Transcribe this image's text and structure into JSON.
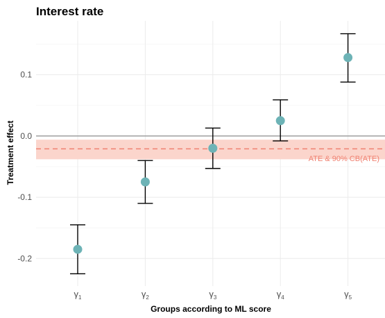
{
  "chart_data": {
    "type": "scatter",
    "title": "Interest rate",
    "xlabel": "Groups according to ML score",
    "ylabel": "Treatment effect",
    "categories": [
      {
        "sym": "γ",
        "sub": "1"
      },
      {
        "sym": "γ",
        "sub": "2"
      },
      {
        "sym": "γ",
        "sub": "3"
      },
      {
        "sym": "γ",
        "sub": "4"
      },
      {
        "sym": "γ",
        "sub": "5"
      }
    ],
    "estimates": [
      -0.185,
      -0.075,
      -0.02,
      0.025,
      0.128
    ],
    "ci_lower": [
      -0.225,
      -0.11,
      -0.053,
      -0.008,
      0.088
    ],
    "ci_upper": [
      -0.145,
      -0.04,
      0.013,
      0.059,
      0.167
    ],
    "ate": {
      "value": -0.021,
      "lower": -0.038,
      "upper": -0.006,
      "label": "ATE & 90% CB(ATE)",
      "line_color": "#f08070",
      "band_color": "#fbd5cc"
    },
    "reference_line": {
      "value": 0.0,
      "color": "#a6a6a6"
    },
    "y_ticks": [
      0.1,
      0.0,
      -0.1,
      -0.2
    ],
    "y_tick_labels": [
      "0.1",
      "0.0",
      "-0.1",
      "-0.2"
    ],
    "ylim": [
      -0.245,
      0.188
    ],
    "grid": true,
    "point_color": "#6db3b6",
    "errorbar_color": "#000000"
  }
}
